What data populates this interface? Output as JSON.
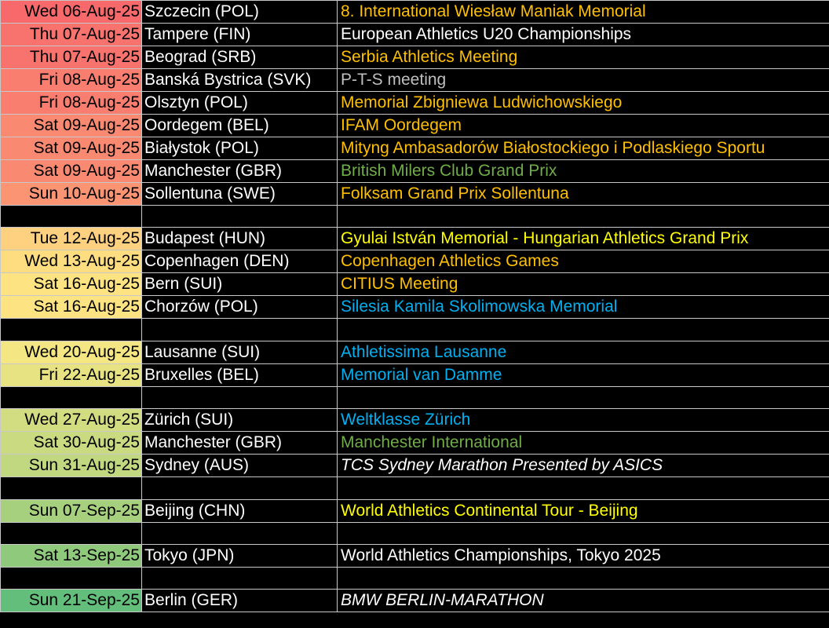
{
  "colors": {
    "white": "#ffffff",
    "orange": "#ffc000",
    "yellow": "#ffff00",
    "blue": "#00b0f0",
    "green": "#70ad47",
    "gray": "#bfbfbf"
  },
  "rows": [
    {
      "date": "Wed 06-Aug-25",
      "city": "Szczecin (POL)",
      "event": "8. International Wiesław Maniak Memorial",
      "event_color": "orange",
      "date_bg": "#f8696b"
    },
    {
      "date": "Thu 07-Aug-25",
      "city": "Tampere (FIN)",
      "event": "European Athletics U20 Championships",
      "event_color": "white",
      "date_bg": "#f8736d"
    },
    {
      "date": "Thu 07-Aug-25",
      "city": "Beograd (SRB)",
      "event": "Serbia Athletics Meeting",
      "event_color": "orange",
      "date_bg": "#f8736d"
    },
    {
      "date": "Fri 08-Aug-25",
      "city": "Banská Bystrica (SVK)",
      "event": "P-T-S meeting",
      "event_color": "gray",
      "date_bg": "#f97e6f"
    },
    {
      "date": "Fri 08-Aug-25",
      "city": "Olsztyn (POL)",
      "event": "Memorial Zbigniewa Ludwichowskiego",
      "event_color": "orange",
      "date_bg": "#f97e6f"
    },
    {
      "date": "Sat 09-Aug-25",
      "city": "Oordegem (BEL)",
      "event": "IFAM Oordegem",
      "event_color": "orange",
      "date_bg": "#fa8971"
    },
    {
      "date": "Sat 09-Aug-25",
      "city": "Białystok (POL)",
      "event": "Mityng Ambasadorów Białostockiego i Podlaskiego Sportu",
      "event_color": "orange",
      "date_bg": "#fa8971"
    },
    {
      "date": "Sat 09-Aug-25",
      "city": "Manchester (GBR)",
      "event": "British Milers Club Grand Prix",
      "event_color": "green",
      "date_bg": "#fa8971"
    },
    {
      "date": "Sun 10-Aug-25",
      "city": "Sollentuna (SWE)",
      "event": "Folksam Grand Prix Sollentuna",
      "event_color": "orange",
      "date_bg": "#fa9473"
    },
    {
      "blank": true
    },
    {
      "date": "Tue 12-Aug-25",
      "city": "Budapest (HUN)",
      "event": "Gyulai István Memorial - Hungarian Athletics Grand Prix",
      "event_color": "yellow",
      "date_bg": "#fdd17f"
    },
    {
      "date": "Wed 13-Aug-25",
      "city": "Copenhagen (DEN)",
      "event": "Copenhagen Athletics Games",
      "event_color": "orange",
      "date_bg": "#fedd81"
    },
    {
      "date": "Sat 16-Aug-25",
      "city": "Bern (SUI)",
      "event": "CITIUS Meeting",
      "event_color": "orange",
      "date_bg": "#fee382"
    },
    {
      "date": "Sat 16-Aug-25",
      "city": "Chorzów (POL)",
      "event": "Silesia Kamila Skolimowska Memorial",
      "event_color": "blue",
      "date_bg": "#fee382"
    },
    {
      "blank": true
    },
    {
      "date": "Wed 20-Aug-25",
      "city": "Lausanne (SUI)",
      "event": "Athletissima Lausanne",
      "event_color": "blue",
      "date_bg": "#f3e683"
    },
    {
      "date": "Fri 22-Aug-25",
      "city": "Bruxelles (BEL)",
      "event": "Memorial van Damme",
      "event_color": "blue",
      "date_bg": "#e8e382"
    },
    {
      "blank": true
    },
    {
      "date": "Wed 27-Aug-25",
      "city": "Zürich (SUI)",
      "event": "Weltklasse Zürich",
      "event_color": "blue",
      "date_bg": "#d2dd81"
    },
    {
      "date": "Sat 30-Aug-25",
      "city": "Manchester (GBR)",
      "event": "Manchester International",
      "event_color": "green",
      "date_bg": "#c9da80"
    },
    {
      "date": "Sun 31-Aug-25",
      "city": "Sydney (AUS)",
      "event": "TCS Sydney Marathon Presented by ASICS",
      "event_color": "white",
      "italic": true,
      "date_bg": "#c1d880"
    },
    {
      "blank": true
    },
    {
      "date": "Sun 07-Sep-25",
      "city": "Beijing (CHN)",
      "event": "World Athletics Continental Tour - Beijing",
      "event_color": "yellow",
      "date_bg": "#a6d07d"
    },
    {
      "blank": true
    },
    {
      "date": "Sat 13-Sep-25",
      "city": "Tokyo (JPN)",
      "event": "World Athletics Championships, Tokyo 2025",
      "event_color": "white",
      "date_bg": "#8fc97c"
    },
    {
      "blank": true
    },
    {
      "date": "Sun 21-Sep-25",
      "city": "Berlin (GER)",
      "event": "BMW BERLIN-MARATHON",
      "event_color": "white",
      "italic": true,
      "date_bg": "#63be7b"
    }
  ]
}
